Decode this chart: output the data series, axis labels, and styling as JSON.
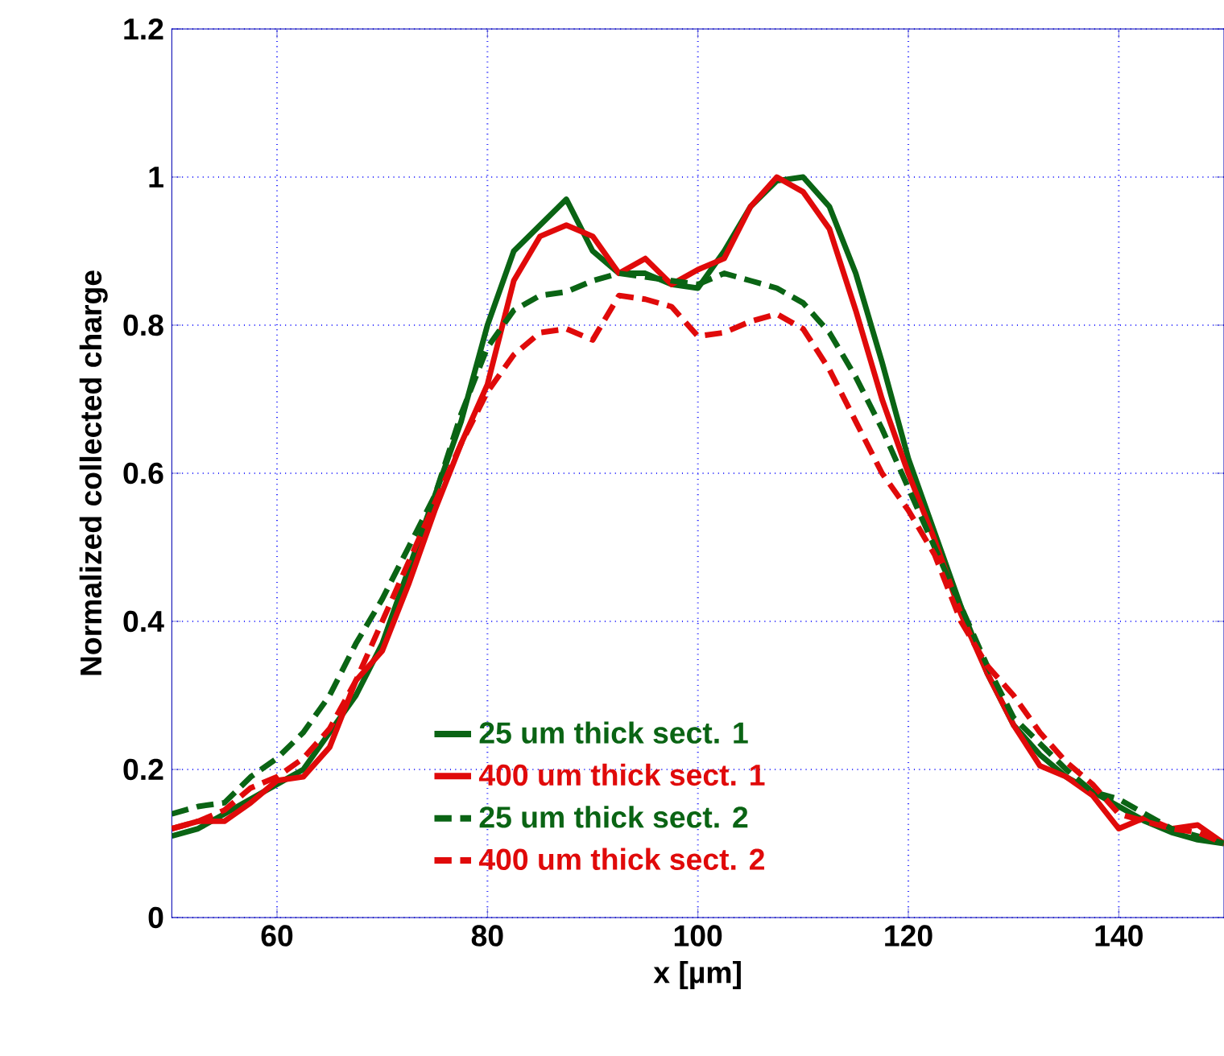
{
  "chart_data": {
    "type": "line",
    "xlabel": "x [µm]",
    "ylabel": "Normalized collected charge",
    "xlim": [
      50,
      150
    ],
    "ylim": [
      0,
      1.2
    ],
    "xticks": [
      60,
      80,
      100,
      120,
      140
    ],
    "yticks": [
      0,
      0.2,
      0.4,
      0.6,
      0.8,
      1,
      1.2
    ],
    "grid": true,
    "legend": "bottom",
    "marker": "none",
    "x": [
      50,
      52.5,
      55,
      57.5,
      60,
      62.5,
      65,
      67.5,
      70,
      72.5,
      75,
      77.5,
      80,
      82.5,
      85,
      87.5,
      90,
      92.5,
      95,
      97.5,
      100,
      102.5,
      105,
      107.5,
      110,
      112.5,
      115,
      117.5,
      120,
      122.5,
      125,
      127.5,
      130,
      132.5,
      135,
      137.5,
      140,
      142.5,
      145,
      147.5,
      150
    ],
    "series": [
      {
        "name": "25 um thick sect. 1",
        "color": "#0a6414",
        "line_style": "solid",
        "values": [
          0.11,
          0.12,
          0.14,
          0.16,
          0.18,
          0.2,
          0.25,
          0.3,
          0.37,
          0.47,
          0.57,
          0.67,
          0.8,
          0.9,
          0.935,
          0.97,
          0.9,
          0.87,
          0.87,
          0.855,
          0.85,
          0.9,
          0.96,
          0.995,
          1.0,
          0.96,
          0.87,
          0.75,
          0.62,
          0.52,
          0.42,
          0.33,
          0.26,
          0.22,
          0.19,
          0.17,
          0.15,
          0.13,
          0.115,
          0.105,
          0.1
        ]
      },
      {
        "name": "400 um thick sect. 1",
        "color": "#e00a0a",
        "line_style": "solid",
        "values": [
          0.12,
          0.13,
          0.13,
          0.155,
          0.185,
          0.19,
          0.23,
          0.32,
          0.36,
          0.45,
          0.55,
          0.64,
          0.72,
          0.86,
          0.92,
          0.935,
          0.92,
          0.87,
          0.89,
          0.855,
          0.875,
          0.89,
          0.96,
          1.0,
          0.98,
          0.93,
          0.82,
          0.7,
          0.6,
          0.51,
          0.41,
          0.33,
          0.26,
          0.205,
          0.19,
          0.165,
          0.12,
          0.135,
          0.12,
          0.125,
          0.1
        ]
      },
      {
        "name": "25 um thick sect. 2",
        "color": "#0a6414",
        "line_style": "dashed",
        "values": [
          0.14,
          0.15,
          0.155,
          0.19,
          0.215,
          0.25,
          0.3,
          0.37,
          0.43,
          0.5,
          0.57,
          0.68,
          0.77,
          0.82,
          0.84,
          0.845,
          0.86,
          0.87,
          0.865,
          0.86,
          0.855,
          0.87,
          0.86,
          0.85,
          0.83,
          0.79,
          0.73,
          0.66,
          0.58,
          0.5,
          0.42,
          0.34,
          0.27,
          0.235,
          0.2,
          0.17,
          0.16,
          0.14,
          0.12,
          0.11,
          0.1
        ]
      },
      {
        "name": "400 um thick sect. 2",
        "color": "#e00a0a",
        "line_style": "dashed",
        "values": [
          0.12,
          0.13,
          0.145,
          0.175,
          0.19,
          0.215,
          0.255,
          0.32,
          0.4,
          0.48,
          0.56,
          0.64,
          0.71,
          0.76,
          0.79,
          0.795,
          0.78,
          0.84,
          0.835,
          0.825,
          0.785,
          0.79,
          0.805,
          0.815,
          0.795,
          0.74,
          0.67,
          0.6,
          0.55,
          0.49,
          0.4,
          0.34,
          0.3,
          0.25,
          0.21,
          0.18,
          0.14,
          0.13,
          0.12,
          0.115,
          0.1
        ]
      }
    ]
  }
}
